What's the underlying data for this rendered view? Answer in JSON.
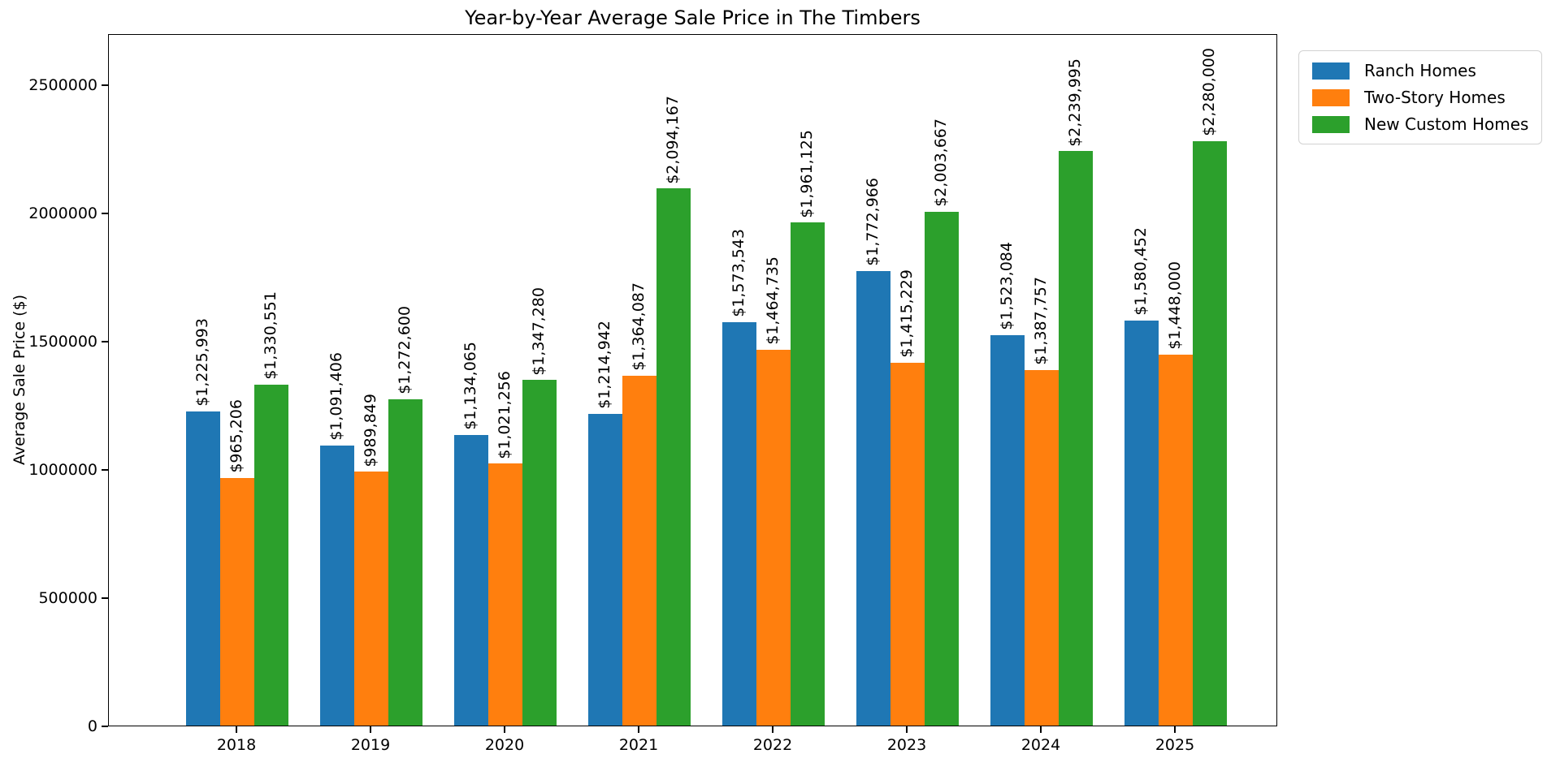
{
  "chart_data": {
    "type": "bar",
    "title": "Year-by-Year Average Sale Price in The Timbers",
    "xlabel": "",
    "ylabel": "Average Sale Price ($)",
    "categories": [
      "2018",
      "2019",
      "2020",
      "2021",
      "2022",
      "2023",
      "2024",
      "2025"
    ],
    "series": [
      {
        "name": "Ranch Homes",
        "color": "#1f77b4",
        "values": [
          1225993,
          1091406,
          1134065,
          1214942,
          1573543,
          1772966,
          1523084,
          1580452
        ]
      },
      {
        "name": "Two-Story Homes",
        "color": "#ff7f0e",
        "values": [
          965206,
          989849,
          1021256,
          1364087,
          1464735,
          1415229,
          1387757,
          1448000
        ]
      },
      {
        "name": "New Custom Homes",
        "color": "#2ca02c",
        "values": [
          1330551,
          1272600,
          1347280,
          2094167,
          1961125,
          2003667,
          2239995,
          2280000
        ]
      }
    ],
    "bar_value_labels": [
      [
        "$1,225,993",
        "$1,091,406",
        "$1,134,065",
        "$1,214,942",
        "$1,573,543",
        "$1,772,966",
        "$1,523,084",
        "$1,580,452"
      ],
      [
        "$965,206",
        "$989,849",
        "$1,021,256",
        "$1,364,087",
        "$1,464,735",
        "$1,415,229",
        "$1,387,757",
        "$1,448,000"
      ],
      [
        "$1,330,551",
        "$1,272,600",
        "$1,347,280",
        "$2,094,167",
        "$1,961,125",
        "$2,003,667",
        "$2,239,995",
        "$2,280,000"
      ]
    ],
    "yticks": [
      0,
      500000,
      1000000,
      1500000,
      2000000,
      2500000
    ],
    "ytick_labels": [
      "0",
      "500000",
      "1000000",
      "1500000",
      "2000000",
      "2500000"
    ],
    "ylim": [
      0,
      2700000
    ],
    "grid": false,
    "legend_position": "upper-right-outside",
    "text_color": "#000000",
    "spine_color": "#000000"
  }
}
